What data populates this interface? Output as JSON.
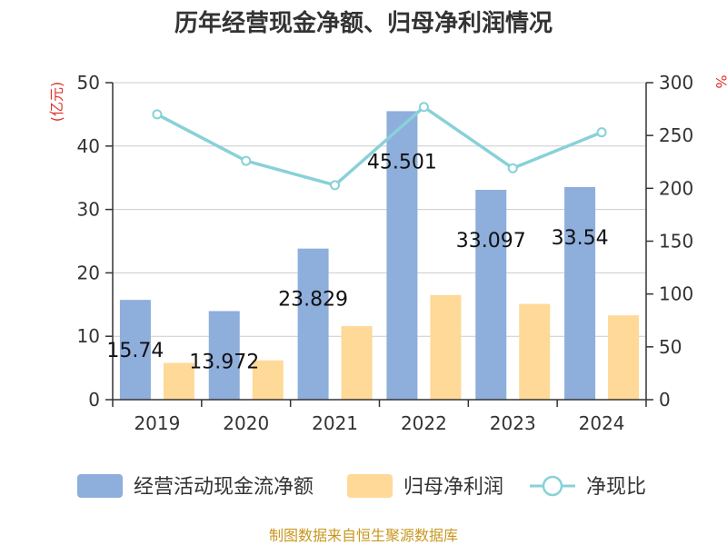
{
  "chart_data": {
    "type": "bar",
    "title": "历年经营现金净额、归母净利润情况",
    "left_unit": "(亿元)",
    "right_unit": "%",
    "categories": [
      "2019",
      "2020",
      "2021",
      "2022",
      "2023",
      "2024"
    ],
    "series": [
      {
        "name": "经营活动现金流净额",
        "type": "bar",
        "axis": "left",
        "color": "#8eaedb",
        "values": [
          15.74,
          13.972,
          23.829,
          45.501,
          33.097,
          33.54
        ],
        "labels": [
          "15.74",
          "13.972",
          "23.829",
          "45.501",
          "33.097",
          "33.54"
        ]
      },
      {
        "name": "归母净利润",
        "type": "bar",
        "axis": "left",
        "color": "#fed998",
        "values": [
          5.8,
          6.2,
          11.6,
          16.5,
          15.1,
          13.3
        ]
      },
      {
        "name": "净现比",
        "type": "line",
        "axis": "right",
        "color": "#88d1d8",
        "values": [
          270,
          226,
          203,
          277,
          219,
          253
        ]
      }
    ],
    "ylim_left": [
      0,
      50
    ],
    "yticks_left": [
      "0",
      "10",
      "20",
      "30",
      "40",
      "50"
    ],
    "ylim_right": [
      0,
      300
    ],
    "yticks_right": [
      "0",
      "50",
      "100",
      "150",
      "200",
      "250",
      "300"
    ],
    "grid": true,
    "legend": "bottom"
  },
  "source": "制图数据来自恒生聚源数据库"
}
